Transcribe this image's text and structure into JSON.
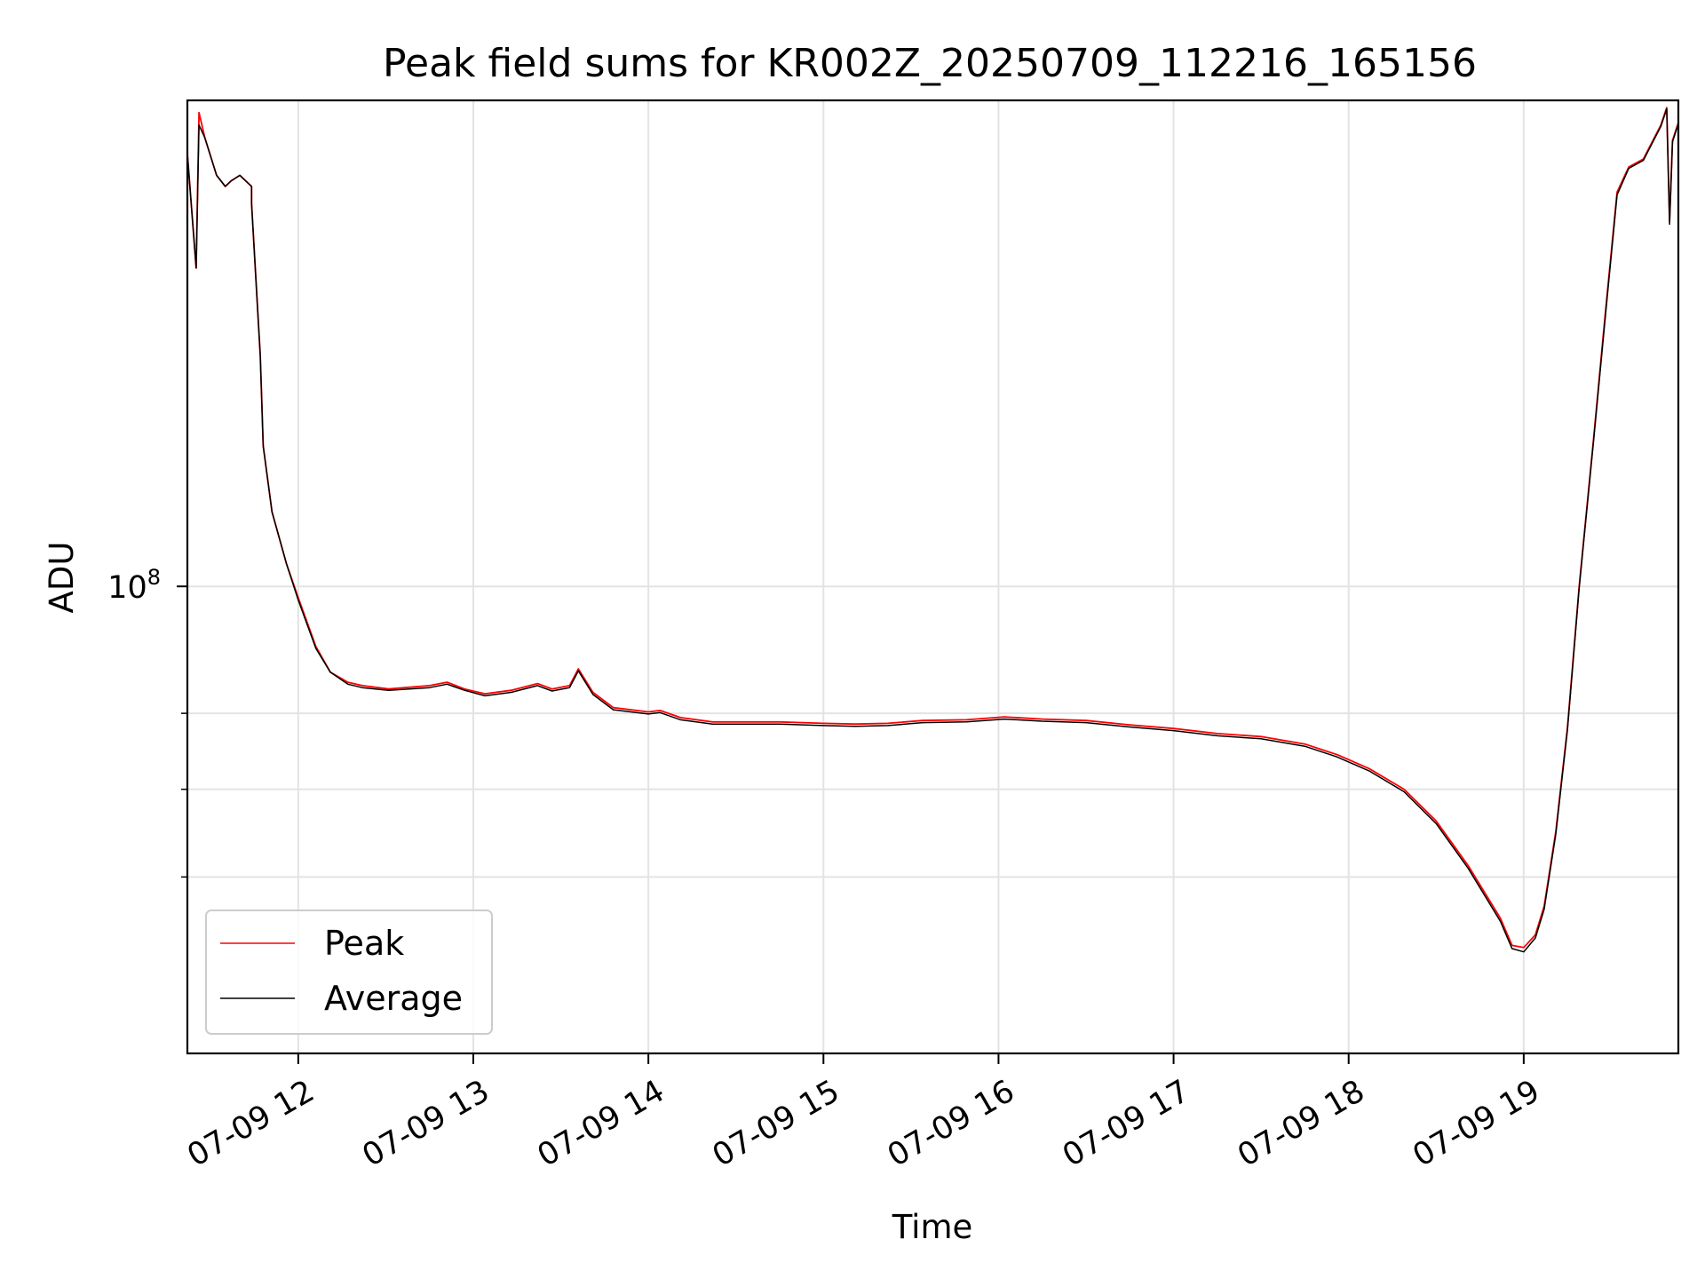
{
  "chart_data": {
    "type": "line",
    "title": "Peak field sums for KR002Z_20250709_112216_165156",
    "xlabel": "Time",
    "ylabel": "ADU",
    "x_axis": {
      "kind": "time",
      "xlim": [
        "2025-07-09T11:22",
        "2025-07-09T19:53"
      ],
      "ticks": [
        {
          "value": "2025-07-09T12:00",
          "label": "07-09 12"
        },
        {
          "value": "2025-07-09T13:00",
          "label": "07-09 13"
        },
        {
          "value": "2025-07-09T14:00",
          "label": "07-09 14"
        },
        {
          "value": "2025-07-09T15:00",
          "label": "07-09 15"
        },
        {
          "value": "2025-07-09T16:00",
          "label": "07-09 16"
        },
        {
          "value": "2025-07-09T17:00",
          "label": "07-09 17"
        },
        {
          "value": "2025-07-09T18:00",
          "label": "07-09 18"
        },
        {
          "value": "2025-07-09T19:00",
          "label": "07-09 19"
        }
      ]
    },
    "y_axis": {
      "scale": "log",
      "ylim": [
        44000000,
        235000000
      ],
      "major_ticks": [
        {
          "value": 100000000,
          "label_base": "10",
          "label_exp": "8"
        }
      ],
      "minor_ticks": [
        60000000,
        70000000,
        80000000
      ]
    },
    "grid": true,
    "legend": {
      "position": "lower-left"
    },
    "series": [
      {
        "name": "Peak",
        "color": "#ff0000",
        "points": [
          [
            "2025-07-09T11:22",
            214000000
          ],
          [
            "2025-07-09T11:25",
            175000000
          ],
          [
            "2025-07-09T11:26",
            230000000
          ],
          [
            "2025-07-09T11:28",
            220000000
          ],
          [
            "2025-07-09T11:32",
            206000000
          ],
          [
            "2025-07-09T11:35",
            202000000
          ],
          [
            "2025-07-09T11:37",
            204000000
          ],
          [
            "2025-07-09T11:40",
            206000000
          ],
          [
            "2025-07-09T11:44",
            202000000
          ],
          [
            "2025-07-09T11:44",
            196000000
          ],
          [
            "2025-07-09T11:47",
            150000000
          ],
          [
            "2025-07-09T11:48",
            128000000
          ],
          [
            "2025-07-09T11:51",
            114000000
          ],
          [
            "2025-07-09T11:56",
            104000000
          ],
          [
            "2025-07-09T12:00",
            98000000
          ],
          [
            "2025-07-09T12:06",
            90000000
          ],
          [
            "2025-07-09T12:11",
            86000000
          ],
          [
            "2025-07-09T12:17",
            84500000
          ],
          [
            "2025-07-09T12:22",
            84000000
          ],
          [
            "2025-07-09T12:31",
            83500000
          ],
          [
            "2025-07-09T12:45",
            84000000
          ],
          [
            "2025-07-09T12:51",
            84500000
          ],
          [
            "2025-07-09T12:57",
            83500000
          ],
          [
            "2025-07-09T13:04",
            82800000
          ],
          [
            "2025-07-09T13:13",
            83300000
          ],
          [
            "2025-07-09T13:22",
            84300000
          ],
          [
            "2025-07-09T13:27",
            83500000
          ],
          [
            "2025-07-09T13:33",
            84000000
          ],
          [
            "2025-07-09T13:36",
            86500000
          ],
          [
            "2025-07-09T13:41",
            83000000
          ],
          [
            "2025-07-09T13:48",
            80800000
          ],
          [
            "2025-07-09T14:00",
            80200000
          ],
          [
            "2025-07-09T14:04",
            80400000
          ],
          [
            "2025-07-09T14:11",
            79400000
          ],
          [
            "2025-07-09T14:22",
            78800000
          ],
          [
            "2025-07-09T14:45",
            78800000
          ],
          [
            "2025-07-09T15:00",
            78600000
          ],
          [
            "2025-07-09T15:11",
            78500000
          ],
          [
            "2025-07-09T15:22",
            78600000
          ],
          [
            "2025-07-09T15:34",
            79000000
          ],
          [
            "2025-07-09T15:49",
            79100000
          ],
          [
            "2025-07-09T16:02",
            79500000
          ],
          [
            "2025-07-09T16:15",
            79200000
          ],
          [
            "2025-07-09T16:30",
            79000000
          ],
          [
            "2025-07-09T16:45",
            78400000
          ],
          [
            "2025-07-09T17:00",
            77900000
          ],
          [
            "2025-07-09T17:15",
            77200000
          ],
          [
            "2025-07-09T17:30",
            76800000
          ],
          [
            "2025-07-09T17:45",
            75800000
          ],
          [
            "2025-07-09T17:56",
            74400000
          ],
          [
            "2025-07-09T18:07",
            72600000
          ],
          [
            "2025-07-09T18:19",
            70000000
          ],
          [
            "2025-07-09T18:30",
            66200000
          ],
          [
            "2025-07-09T18:41",
            61200000
          ],
          [
            "2025-07-09T18:52",
            55800000
          ],
          [
            "2025-07-09T18:56",
            53200000
          ],
          [
            "2025-07-09T19:00",
            53000000
          ],
          [
            "2025-07-09T19:04",
            54200000
          ],
          [
            "2025-07-09T19:07",
            57000000
          ],
          [
            "2025-07-09T19:11",
            65000000
          ],
          [
            "2025-07-09T19:15",
            78000000
          ],
          [
            "2025-07-09T19:19",
            100000000
          ],
          [
            "2025-07-09T19:24",
            130000000
          ],
          [
            "2025-07-09T19:28",
            162000000
          ],
          [
            "2025-07-09T19:32",
            200000000
          ],
          [
            "2025-07-09T19:36",
            209000000
          ],
          [
            "2025-07-09T19:41",
            212000000
          ],
          [
            "2025-07-09T19:47",
            225000000
          ],
          [
            "2025-07-09T19:49",
            232000000
          ],
          [
            "2025-07-09T19:50",
            190000000
          ],
          [
            "2025-07-09T19:51",
            219000000
          ],
          [
            "2025-07-09T19:53",
            226000000
          ]
        ]
      },
      {
        "name": "Average",
        "color": "#000000",
        "points": [
          [
            "2025-07-09T11:22",
            214000000
          ],
          [
            "2025-07-09T11:25",
            175000000
          ],
          [
            "2025-07-09T11:26",
            225000000
          ],
          [
            "2025-07-09T11:28",
            220000000
          ],
          [
            "2025-07-09T11:32",
            206000000
          ],
          [
            "2025-07-09T11:35",
            202000000
          ],
          [
            "2025-07-09T11:37",
            204000000
          ],
          [
            "2025-07-09T11:40",
            206000000
          ],
          [
            "2025-07-09T11:44",
            202000000
          ],
          [
            "2025-07-09T11:44",
            196000000
          ],
          [
            "2025-07-09T11:47",
            150000000
          ],
          [
            "2025-07-09T11:48",
            128000000
          ],
          [
            "2025-07-09T11:51",
            114000000
          ],
          [
            "2025-07-09T11:56",
            104000000
          ],
          [
            "2025-07-09T12:00",
            97600000
          ],
          [
            "2025-07-09T12:06",
            89700000
          ],
          [
            "2025-07-09T12:11",
            86000000
          ],
          [
            "2025-07-09T12:17",
            84200000
          ],
          [
            "2025-07-09T12:22",
            83700000
          ],
          [
            "2025-07-09T12:31",
            83300000
          ],
          [
            "2025-07-09T12:45",
            83700000
          ],
          [
            "2025-07-09T12:51",
            84200000
          ],
          [
            "2025-07-09T12:57",
            83300000
          ],
          [
            "2025-07-09T13:04",
            82500000
          ],
          [
            "2025-07-09T13:13",
            83000000
          ],
          [
            "2025-07-09T13:22",
            84000000
          ],
          [
            "2025-07-09T13:27",
            83200000
          ],
          [
            "2025-07-09T13:33",
            83700000
          ],
          [
            "2025-07-09T13:36",
            86200000
          ],
          [
            "2025-07-09T13:41",
            82700000
          ],
          [
            "2025-07-09T13:48",
            80500000
          ],
          [
            "2025-07-09T14:00",
            79900000
          ],
          [
            "2025-07-09T14:04",
            80100000
          ],
          [
            "2025-07-09T14:11",
            79100000
          ],
          [
            "2025-07-09T14:22",
            78500000
          ],
          [
            "2025-07-09T14:45",
            78500000
          ],
          [
            "2025-07-09T15:00",
            78300000
          ],
          [
            "2025-07-09T15:11",
            78200000
          ],
          [
            "2025-07-09T15:22",
            78300000
          ],
          [
            "2025-07-09T15:34",
            78700000
          ],
          [
            "2025-07-09T15:49",
            78800000
          ],
          [
            "2025-07-09T16:02",
            79200000
          ],
          [
            "2025-07-09T16:15",
            78900000
          ],
          [
            "2025-07-09T16:30",
            78700000
          ],
          [
            "2025-07-09T16:45",
            78100000
          ],
          [
            "2025-07-09T17:00",
            77600000
          ],
          [
            "2025-07-09T17:15",
            76900000
          ],
          [
            "2025-07-09T17:30",
            76500000
          ],
          [
            "2025-07-09T17:45",
            75500000
          ],
          [
            "2025-07-09T17:56",
            74100000
          ],
          [
            "2025-07-09T18:07",
            72300000
          ],
          [
            "2025-07-09T18:19",
            69700000
          ],
          [
            "2025-07-09T18:30",
            65900000
          ],
          [
            "2025-07-09T18:41",
            60900000
          ],
          [
            "2025-07-09T18:52",
            55500000
          ],
          [
            "2025-07-09T18:56",
            52900000
          ],
          [
            "2025-07-09T19:00",
            52600000
          ],
          [
            "2025-07-09T19:04",
            53900000
          ],
          [
            "2025-07-09T19:07",
            56700000
          ],
          [
            "2025-07-09T19:11",
            64700000
          ],
          [
            "2025-07-09T19:15",
            77700000
          ],
          [
            "2025-07-09T19:19",
            99700000
          ],
          [
            "2025-07-09T19:24",
            129500000
          ],
          [
            "2025-07-09T19:28",
            161000000
          ],
          [
            "2025-07-09T19:32",
            199000000
          ],
          [
            "2025-07-09T19:36",
            208500000
          ],
          [
            "2025-07-09T19:41",
            211500000
          ],
          [
            "2025-07-09T19:47",
            224500000
          ],
          [
            "2025-07-09T19:49",
            231500000
          ],
          [
            "2025-07-09T19:50",
            189000000
          ],
          [
            "2025-07-09T19:51",
            218500000
          ],
          [
            "2025-07-09T19:53",
            225500000
          ]
        ]
      }
    ]
  }
}
